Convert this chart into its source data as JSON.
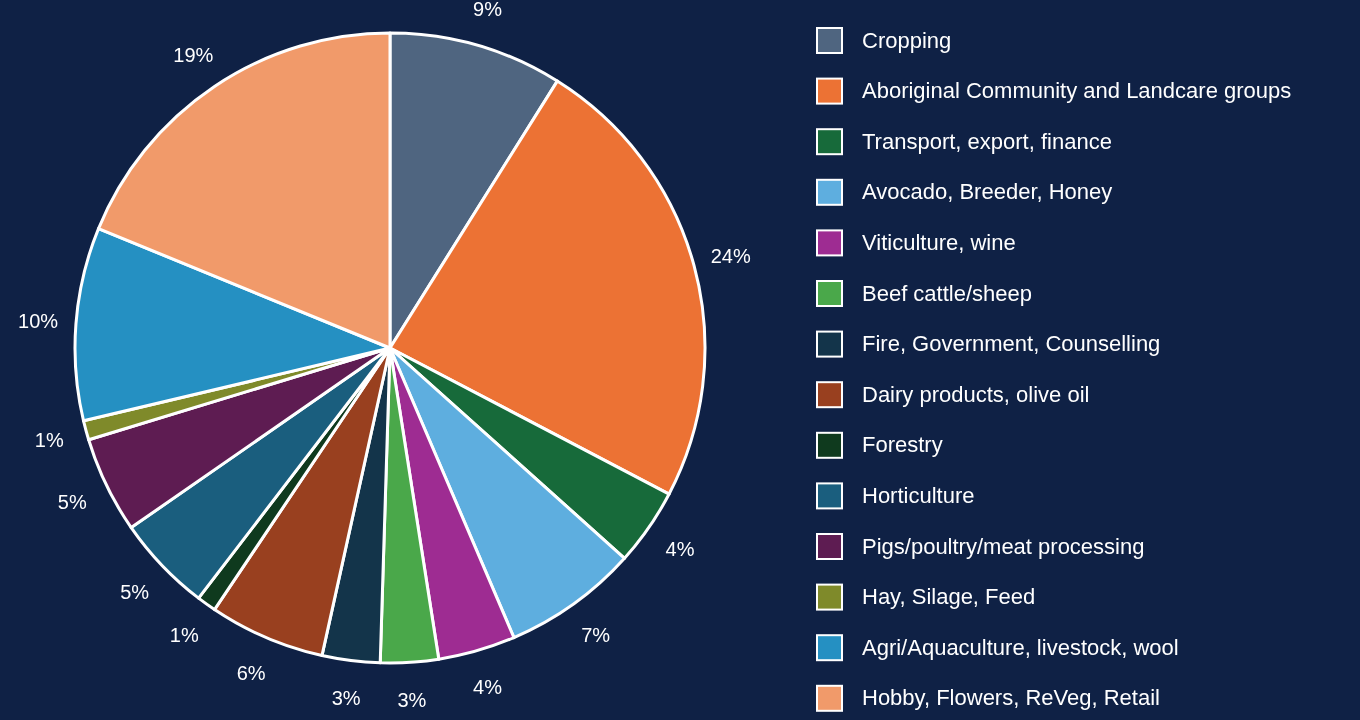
{
  "chart_data": {
    "type": "pie",
    "categories": [
      "Cropping",
      "Aboriginal Community and Landcare groups",
      "Transport, export, finance",
      "Avocado, Breeder, Honey",
      "Viticulture, wine",
      "Beef cattle/sheep",
      "Fire, Government, Counselling",
      "Dairy products, olive oil",
      "Forestry",
      "Horticulture",
      "Pigs/poultry/meat processing",
      "Hay, Silage, Feed",
      "Agri/Aquaculture, livestock, wool",
      "Hobby, Flowers, ReVeg, Retail"
    ],
    "values": [
      9,
      24,
      4,
      7,
      4,
      3,
      3,
      6,
      1,
      5,
      5,
      1,
      10,
      19
    ],
    "colors": [
      "#4f6580",
      "#ec7234",
      "#176a3a",
      "#5eaedf",
      "#9e2c92",
      "#4aa84a",
      "#13344a",
      "#99401f",
      "#0f3a1e",
      "#1a5e7e",
      "#5e1c52",
      "#7f8a2a",
      "#2590c2",
      "#f19a6a"
    ],
    "value_labels": [
      "9%",
      "24%",
      "4%",
      "7%",
      "4%",
      "3%",
      "3%",
      "6%",
      "1%",
      "5%",
      "5%",
      "1%",
      "10%",
      "19%"
    ],
    "legend": "right"
  }
}
